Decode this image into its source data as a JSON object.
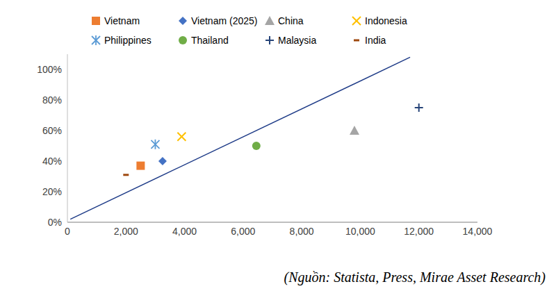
{
  "chart_data": {
    "type": "scatter",
    "legend": "top",
    "grid": false,
    "source": "(Nguồn: Statista, Press, Mirae Asset Research)",
    "xlim": [
      0,
      14000
    ],
    "xticks": [
      0,
      {
        "value": 2000,
        "label": "2,000"
      },
      {
        "value": 4000,
        "label": "4,000"
      },
      {
        "value": 6000,
        "label": "6,000"
      },
      {
        "value": 8000,
        "label": "8,000"
      },
      {
        "value": 10000,
        "label": "10,000"
      },
      {
        "value": 12000,
        "label": "12,000"
      },
      {
        "value": 14000,
        "label": "14,000"
      }
    ],
    "ylim": [
      0,
      110
    ],
    "yticks": [
      {
        "value": 0,
        "label": "0%"
      },
      {
        "value": 20,
        "label": "20%"
      },
      {
        "value": 40,
        "label": "40%"
      },
      {
        "value": 60,
        "label": "60%"
      },
      {
        "value": 80,
        "label": "80%"
      },
      {
        "value": 100,
        "label": "100%"
      }
    ],
    "series": [
      {
        "name": "Vietnam",
        "color": "#ED7D31",
        "marker": "square",
        "x": [
          2500
        ],
        "values": [
          37
        ]
      },
      {
        "name": "Vietnam (2025)",
        "color": "#4472C4",
        "marker": "diamond",
        "x": [
          3250
        ],
        "values": [
          40
        ]
      },
      {
        "name": "China",
        "color": "#A5A5A5",
        "marker": "triangle",
        "x": [
          9800
        ],
        "values": [
          60
        ]
      },
      {
        "name": "Indonesia",
        "color": "#FFC000",
        "marker": "x",
        "x": [
          3900
        ],
        "values": [
          56
        ]
      },
      {
        "name": "Philippines",
        "color": "#5B9BD5",
        "marker": "asterisk",
        "x": [
          3000
        ],
        "values": [
          51
        ]
      },
      {
        "name": "Thailand",
        "color": "#70AD47",
        "marker": "circle",
        "x": [
          6450
        ],
        "values": [
          50
        ]
      },
      {
        "name": "Malaysia",
        "color": "#264478",
        "marker": "plus",
        "x": [
          12000
        ],
        "values": [
          75
        ]
      },
      {
        "name": "India",
        "color": "#9E480E",
        "marker": "dash",
        "x": [
          2000
        ],
        "values": [
          31
        ]
      },
      {
        "type": "line",
        "color": "#1F3C88",
        "x": [
          100,
          11700
        ],
        "values": [
          2,
          108
        ]
      }
    ]
  }
}
